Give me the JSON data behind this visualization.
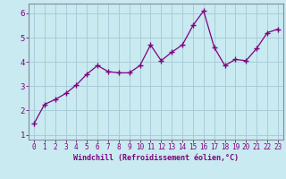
{
  "x": [
    0,
    1,
    2,
    3,
    4,
    5,
    6,
    7,
    8,
    9,
    10,
    11,
    12,
    13,
    14,
    15,
    16,
    17,
    18,
    19,
    20,
    21,
    22,
    23
  ],
  "y": [
    1.45,
    2.25,
    2.45,
    2.7,
    3.05,
    3.5,
    3.85,
    3.6,
    3.55,
    3.55,
    3.85,
    4.7,
    4.05,
    4.4,
    4.7,
    5.5,
    6.1,
    4.6,
    3.85,
    4.1,
    4.05,
    4.55,
    5.2,
    5.35
  ],
  "line_color": "#800080",
  "marker": "+",
  "marker_size": 4,
  "line_width": 0.9,
  "bg_color": "#c8eaf0",
  "grid_color": "#aaccd8",
  "xlabel": "Windchill (Refroidissement éolien,°C)",
  "xlabel_color": "#800080",
  "tick_color": "#800080",
  "spine_color": "#888899",
  "ylim": [
    0.8,
    6.4
  ],
  "xlim": [
    -0.5,
    23.5
  ],
  "yticks": [
    1,
    2,
    3,
    4,
    5,
    6
  ],
  "xticks": [
    0,
    1,
    2,
    3,
    4,
    5,
    6,
    7,
    8,
    9,
    10,
    11,
    12,
    13,
    14,
    15,
    16,
    17,
    18,
    19,
    20,
    21,
    22,
    23
  ],
  "xtick_fontsize": 5.5,
  "ytick_fontsize": 6.5,
  "xlabel_fontsize": 6.0
}
